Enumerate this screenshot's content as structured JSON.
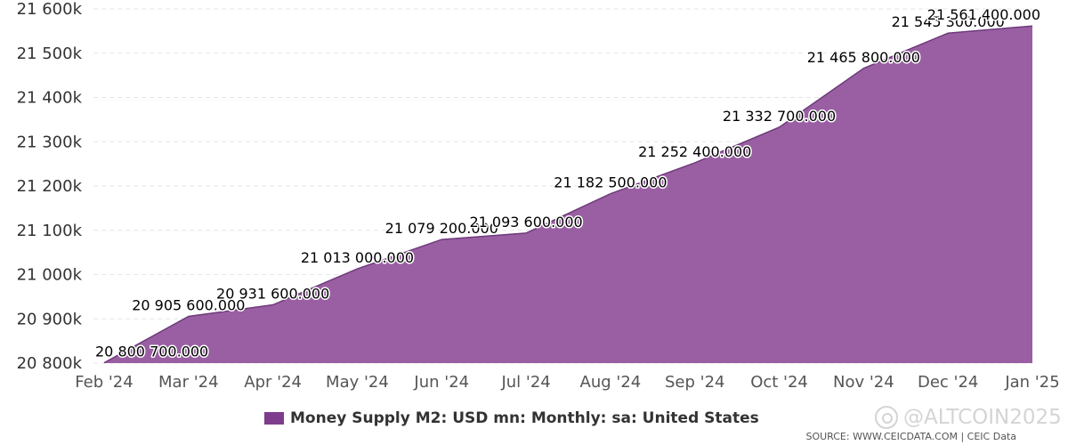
{
  "colors": {
    "area_fill": "#9a5fa3",
    "area_line": "#6e3a7a",
    "grid": "#e6e6e6",
    "legend_swatch": "#7d3c8c"
  },
  "chart_data": {
    "type": "area",
    "title": "",
    "xlabel": "",
    "ylabel": "",
    "categories": [
      "Feb '24",
      "Mar '24",
      "Apr '24",
      "May '24",
      "Jun '24",
      "Jul '24",
      "Aug '24",
      "Sep '24",
      "Oct '24",
      "Nov '24",
      "Dec '24",
      "Jan '25"
    ],
    "series": [
      {
        "name": "Money Supply M2: USD mn: Monthly: sa: United States",
        "values": [
          20800700,
          20905600,
          20931600,
          21013000,
          21079200,
          21093600,
          21182500,
          21252400,
          21332700,
          21465800,
          21545300,
          21561400
        ],
        "data_labels": [
          "20 800 700.000",
          "20 905 600.000",
          "20 931 600.000",
          "21 013 000.000",
          "21 079 200.000",
          "21 093 600.000",
          "21 182 500.000",
          "21 252 400.000",
          "21 332 700.000",
          "21 465 800.000",
          "21 545 300.000",
          "21 561 400.000"
        ]
      }
    ],
    "ylim": [
      20800000,
      21600000
    ],
    "yticks": [
      20800000,
      20900000,
      21000000,
      21100000,
      21200000,
      21300000,
      21400000,
      21500000,
      21600000
    ],
    "ytick_labels": [
      "20 800k",
      "20 900k",
      "21 000k",
      "21 100k",
      "21 200k",
      "21 300k",
      "21 400k",
      "21 500k",
      "21 600k"
    ],
    "grid": true,
    "legend_position": "bottom"
  },
  "legend": {
    "label": "Money Supply M2: USD mn: Monthly: sa: United States"
  },
  "watermark": {
    "text": "@ALTCOIN2025"
  },
  "source": {
    "text": "SOURCE: WWW.CEICDATA.COM | CEIC Data"
  }
}
